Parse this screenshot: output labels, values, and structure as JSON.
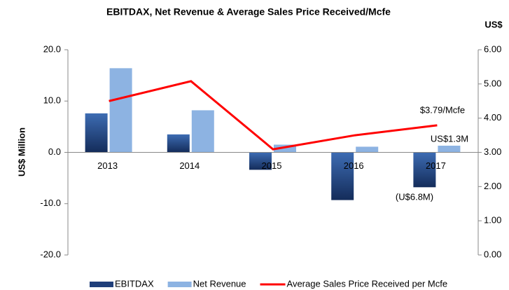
{
  "chart_data": {
    "type": "bar_line",
    "title": "EBITDAX, Net Revenue & Average Sales Price Received/Mcfe",
    "y_label": "US$ Million",
    "y2_label": "US$",
    "categories": [
      "2013",
      "2014",
      "2015",
      "2016",
      "2017"
    ],
    "series": [
      {
        "name": "EBITDAX",
        "type": "bar",
        "color": "#1f3f7a",
        "values": [
          7.6,
          3.5,
          -3.4,
          -9.3,
          -6.8
        ]
      },
      {
        "name": "Net Revenue",
        "type": "bar",
        "color": "#8db3e2",
        "values": [
          16.4,
          8.2,
          1.5,
          1.1,
          1.3
        ]
      },
      {
        "name": "Average Sales Price Received per Mcfe",
        "type": "line",
        "axis": "y2",
        "color": "#ff0000",
        "values": [
          4.5,
          5.08,
          3.09,
          3.5,
          3.79
        ]
      }
    ],
    "annotations": [
      "$3.79/Mcfe",
      "US$1.3M",
      "(U$6.8M)"
    ],
    "ylim": [
      -20,
      20
    ],
    "yticks": [
      {
        "value": -20,
        "label": "-20.0"
      },
      {
        "value": -10,
        "label": "-10.0"
      },
      {
        "value": 0,
        "label": "0.0"
      },
      {
        "value": 10,
        "label": "10.0"
      },
      {
        "value": 20,
        "label": "20.0"
      }
    ],
    "y2lim": [
      0,
      6
    ],
    "y2ticks": [
      {
        "value": 0,
        "label": "0.00"
      },
      {
        "value": 1,
        "label": "1.00"
      },
      {
        "value": 2,
        "label": "2.00"
      },
      {
        "value": 3,
        "label": "3.00"
      },
      {
        "value": 4,
        "label": "4.00"
      },
      {
        "value": 5,
        "label": "5.00"
      },
      {
        "value": 6,
        "label": "6.00"
      }
    ],
    "grid": false,
    "legend": "bottom"
  }
}
